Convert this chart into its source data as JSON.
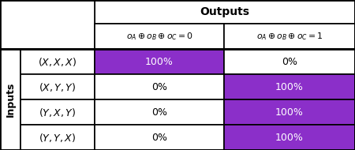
{
  "title": "Outputs",
  "col_headers": [
    "$o_A \\oplus o_B \\oplus o_C = 0$",
    "$o_A \\oplus o_B \\oplus o_C = 1$"
  ],
  "row_headers": [
    "$(X,X,X)$",
    "$(X,Y,Y)$",
    "$(Y,X,Y)$",
    "$(Y,Y,X)$"
  ],
  "row_label": "Inputs",
  "cell_values": [
    [
      "100%",
      "0%"
    ],
    [
      "0%",
      "100%"
    ],
    [
      "0%",
      "100%"
    ],
    [
      "0%",
      "100%"
    ]
  ],
  "cell_colors": [
    [
      "#8B2FC9",
      "#ffffff"
    ],
    [
      "#ffffff",
      "#8B2FC9"
    ],
    [
      "#ffffff",
      "#8B2FC9"
    ],
    [
      "#ffffff",
      "#8B2FC9"
    ]
  ],
  "purple_color": "#8B2FC9",
  "white_color": "#ffffff",
  "header_bg": "#ffffff",
  "text_color_on_purple": "#ffffff",
  "text_color_on_white": "#000000",
  "figsize": [
    4.5,
    1.9
  ],
  "dpi": 100
}
